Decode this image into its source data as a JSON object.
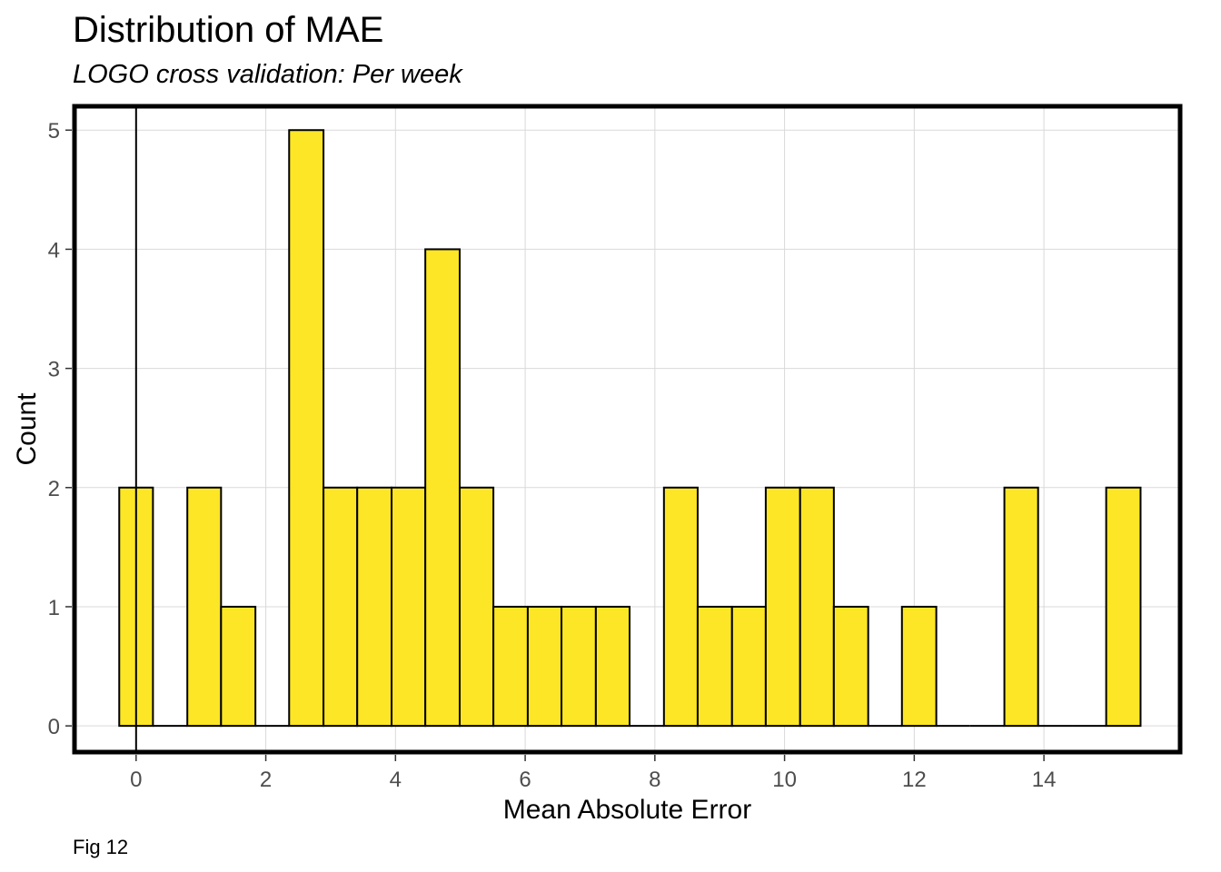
{
  "title": "Distribution of MAE",
  "subtitle": "LOGO cross validation: Per week",
  "caption": "Fig 12",
  "colors": {
    "bar_fill": "#FCE625",
    "bar_stroke": "#000000",
    "grid": "#d9d9d9",
    "panel_border": "#000000",
    "zero_line": "#000000"
  },
  "chart_data": {
    "type": "bar",
    "subtype": "histogram",
    "xlabel": "Mean Absolute Error",
    "ylabel": "Count",
    "xlim": [
      -0.95,
      16.1
    ],
    "ylim": [
      -0.22,
      5.2
    ],
    "x_ticks": [
      0,
      2,
      4,
      6,
      8,
      10,
      12,
      14
    ],
    "y_ticks": [
      0,
      1,
      2,
      3,
      4,
      5
    ],
    "vline_x": 0,
    "grid": true,
    "bins": [
      {
        "x0": -0.26,
        "x1": 0.26,
        "count": 2
      },
      {
        "x0": 0.26,
        "x1": 0.79,
        "count": 0
      },
      {
        "x0": 0.79,
        "x1": 1.31,
        "count": 2
      },
      {
        "x0": 1.31,
        "x1": 1.84,
        "count": 1
      },
      {
        "x0": 1.84,
        "x1": 2.36,
        "count": 0
      },
      {
        "x0": 2.36,
        "x1": 2.89,
        "count": 5
      },
      {
        "x0": 2.89,
        "x1": 3.41,
        "count": 2
      },
      {
        "x0": 3.41,
        "x1": 3.94,
        "count": 2
      },
      {
        "x0": 3.94,
        "x1": 4.46,
        "count": 2
      },
      {
        "x0": 4.46,
        "x1": 4.99,
        "count": 4
      },
      {
        "x0": 4.99,
        "x1": 5.51,
        "count": 2
      },
      {
        "x0": 5.51,
        "x1": 6.04,
        "count": 1
      },
      {
        "x0": 6.04,
        "x1": 6.56,
        "count": 1
      },
      {
        "x0": 6.56,
        "x1": 7.09,
        "count": 1
      },
      {
        "x0": 7.09,
        "x1": 7.61,
        "count": 1
      },
      {
        "x0": 7.61,
        "x1": 8.14,
        "count": 0
      },
      {
        "x0": 8.14,
        "x1": 8.66,
        "count": 2
      },
      {
        "x0": 8.66,
        "x1": 9.19,
        "count": 1
      },
      {
        "x0": 9.19,
        "x1": 9.71,
        "count": 1
      },
      {
        "x0": 9.71,
        "x1": 10.24,
        "count": 2
      },
      {
        "x0": 10.24,
        "x1": 10.76,
        "count": 2
      },
      {
        "x0": 10.76,
        "x1": 11.29,
        "count": 1
      },
      {
        "x0": 11.29,
        "x1": 11.81,
        "count": 0
      },
      {
        "x0": 11.81,
        "x1": 12.34,
        "count": 1
      },
      {
        "x0": 12.34,
        "x1": 12.86,
        "count": 0
      },
      {
        "x0": 12.86,
        "x1": 13.39,
        "count": 0
      },
      {
        "x0": 13.39,
        "x1": 13.91,
        "count": 2
      },
      {
        "x0": 13.91,
        "x1": 14.44,
        "count": 0
      },
      {
        "x0": 14.44,
        "x1": 14.96,
        "count": 0
      },
      {
        "x0": 14.96,
        "x1": 15.49,
        "count": 2
      }
    ]
  }
}
